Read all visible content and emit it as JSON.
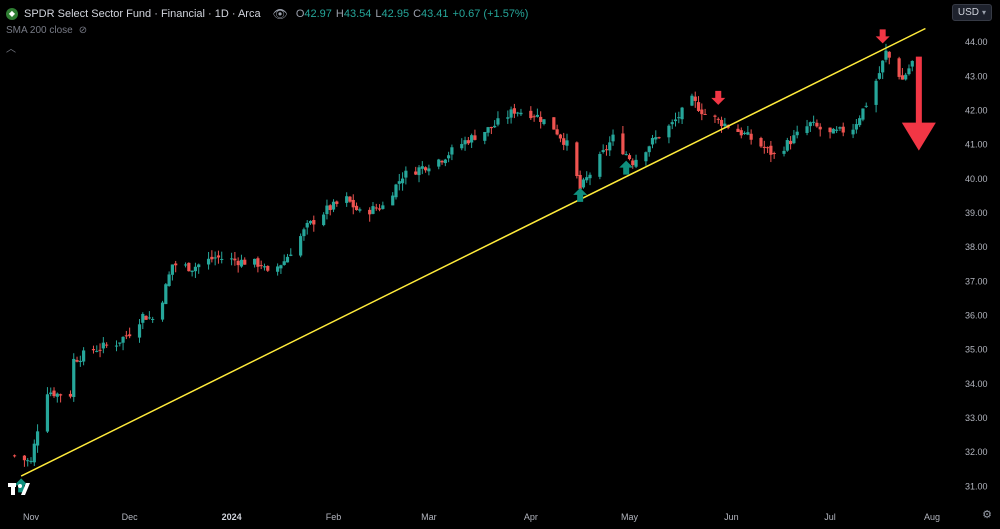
{
  "header": {
    "title": "SPDR Select Sector Fund · Financial · 1D · Arca",
    "ohlc": [
      {
        "k": "O",
        "v": "42.97"
      },
      {
        "k": "H",
        "v": "43.54"
      },
      {
        "k": "L",
        "v": "42.95"
      },
      {
        "k": "C",
        "v": "43.41"
      }
    ],
    "change": "+0.67 (+1.57%)",
    "indicator": "SMA 200 close",
    "currency": "USD"
  },
  "icons": {
    "symbol": "symbol-logo-icon",
    "visibility": "eye-off-icon",
    "collapse": "chevron-up-icon",
    "settings": "gear-icon",
    "brand": "tradingview-logo-icon"
  },
  "colors": {
    "up": "#26a69a",
    "down": "#ef5350",
    "trendline": "#ffeb3b",
    "marker_up": "#0f8f7e",
    "marker_down": "#f23645",
    "background": "#000000"
  },
  "chart_data": {
    "type": "candlestick",
    "title": "SPDR Select Sector Fund · Financial · 1D · Arca",
    "x_labels": [
      "Nov",
      "Dec",
      "2024",
      "Feb",
      "Mar",
      "Apr",
      "May",
      "Jun",
      "Jul",
      "Aug"
    ],
    "y_ticks": [
      31,
      32,
      33,
      34,
      35,
      36,
      37,
      38,
      39,
      40,
      41,
      42,
      43,
      44
    ],
    "y_ticks_text": [
      "31.00",
      "32.00",
      "33.00",
      "34.00",
      "35.00",
      "36.00",
      "37.00",
      "38.00",
      "39.00",
      "40.00",
      "41.00",
      "42.00",
      "43.00",
      "44.00"
    ],
    "ylim": [
      30.6,
      45.0
    ],
    "close_path": [
      [
        "Oct 27",
        31.9
      ],
      [
        "Nov 1",
        31.7
      ],
      [
        "Nov 3",
        32.7
      ],
      [
        "Nov 6",
        33.8
      ],
      [
        "Nov 9",
        33.7
      ],
      [
        "Nov 13",
        33.7
      ],
      [
        "Nov 14",
        34.7
      ],
      [
        "Nov 20",
        35.0
      ],
      [
        "Nov 27",
        35.2
      ],
      [
        "Dec 1",
        35.5
      ],
      [
        "Dec 5",
        36.0
      ],
      [
        "Dec 8",
        35.9
      ],
      [
        "Dec 11",
        36.5
      ],
      [
        "Dec 14",
        37.5
      ],
      [
        "Dec 20",
        37.4
      ],
      [
        "Dec 27",
        37.7
      ],
      [
        "Jan 3",
        37.6
      ],
      [
        "Jan 10",
        37.5
      ],
      [
        "Jan 12",
        37.2
      ],
      [
        "Jan 17",
        37.6
      ],
      [
        "Jan 24",
        38.6
      ],
      [
        "Jan 30",
        39.1
      ],
      [
        "Feb 5",
        39.4
      ],
      [
        "Feb 9",
        39.0
      ],
      [
        "Feb 16",
        39.2
      ],
      [
        "Feb 22",
        40.1
      ],
      [
        "Feb 27",
        40.3
      ],
      [
        "Mar 5",
        40.6
      ],
      [
        "Mar 12",
        41.1
      ],
      [
        "Mar 20",
        41.5
      ],
      [
        "Mar 27",
        42.0
      ],
      [
        "Apr 2",
        41.9
      ],
      [
        "Apr 8",
        41.5
      ],
      [
        "Apr 12",
        41.0
      ],
      [
        "Apr 16",
        39.7
      ],
      [
        "Apr 22",
        40.6
      ],
      [
        "Apr 26",
        41.2
      ],
      [
        "May 2",
        40.5
      ],
      [
        "May 8",
        41.1
      ],
      [
        "May 14",
        41.6
      ],
      [
        "May 20",
        42.3
      ],
      [
        "May 24",
        41.9
      ],
      [
        "May 30",
        41.6
      ],
      [
        "Jun 5",
        41.3
      ],
      [
        "Jun 11",
        40.9
      ],
      [
        "Jun 14",
        40.7
      ],
      [
        "Jun 20",
        41.2
      ],
      [
        "Jun 25",
        41.6
      ],
      [
        "Jul 1",
        41.3
      ],
      [
        "Jul 8",
        41.5
      ],
      [
        "Jul 12",
        42.2
      ],
      [
        "Jul 16",
        43.1
      ],
      [
        "Jul 18",
        43.7
      ],
      [
        "Jul 23",
        42.9
      ],
      [
        "Jul 26",
        43.41
      ]
    ],
    "trendline": {
      "from": [
        "Oct 29",
        31.3
      ],
      "to": [
        "Jul 30",
        44.4
      ]
    },
    "markers": [
      {
        "type": "up",
        "at": [
          "Oct 29",
          31.0
        ]
      },
      {
        "type": "up",
        "at": [
          "Apr 16",
          39.5
        ]
      },
      {
        "type": "up",
        "at": [
          "Apr 30",
          40.3
        ]
      },
      {
        "type": "down",
        "at": [
          "May 28",
          42.4
        ]
      },
      {
        "type": "down",
        "at": [
          "Jul 17",
          44.2
        ]
      },
      {
        "type": "down-large",
        "at": [
          "Jul 28",
          41.0
        ]
      }
    ]
  }
}
